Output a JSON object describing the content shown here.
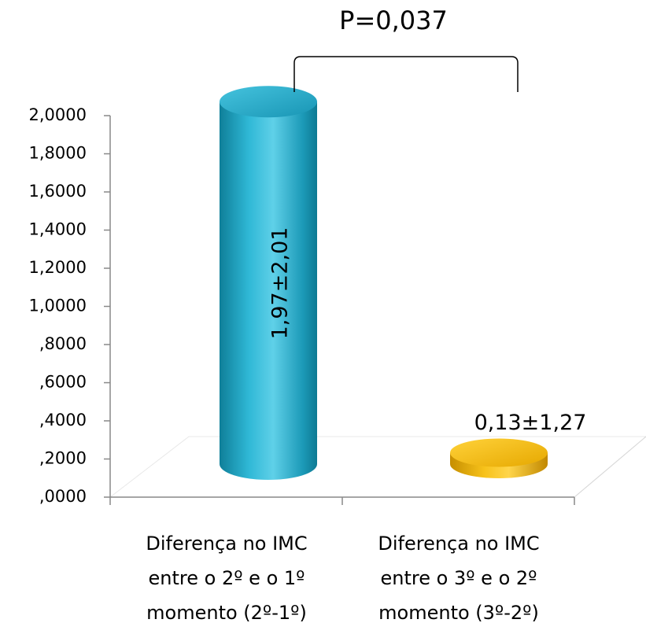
{
  "chart_data": {
    "type": "bar",
    "categories": [
      [
        "Diferença no IMC",
        "entre o 2º e o 1º",
        "momento (2º-1º)"
      ],
      [
        "Diferença no IMC",
        "entre o 3º e o 2º",
        "momento (3º-2º)"
      ]
    ],
    "values": [
      1.97,
      0.13
    ],
    "data_labels": [
      "1,97±2,01",
      "0,13±1,27"
    ],
    "yticks": [
      ",0000",
      ",2000",
      ",4000",
      ",6000",
      ",8000",
      "1,0000",
      "1,2000",
      "1,4000",
      "1,6000",
      "1,8000",
      "2,0000"
    ],
    "ylim": [
      0,
      2.0
    ],
    "annotation": "P=0,037",
    "colors": [
      "#1fa3c2",
      "#f2b800"
    ],
    "grid": false
  }
}
